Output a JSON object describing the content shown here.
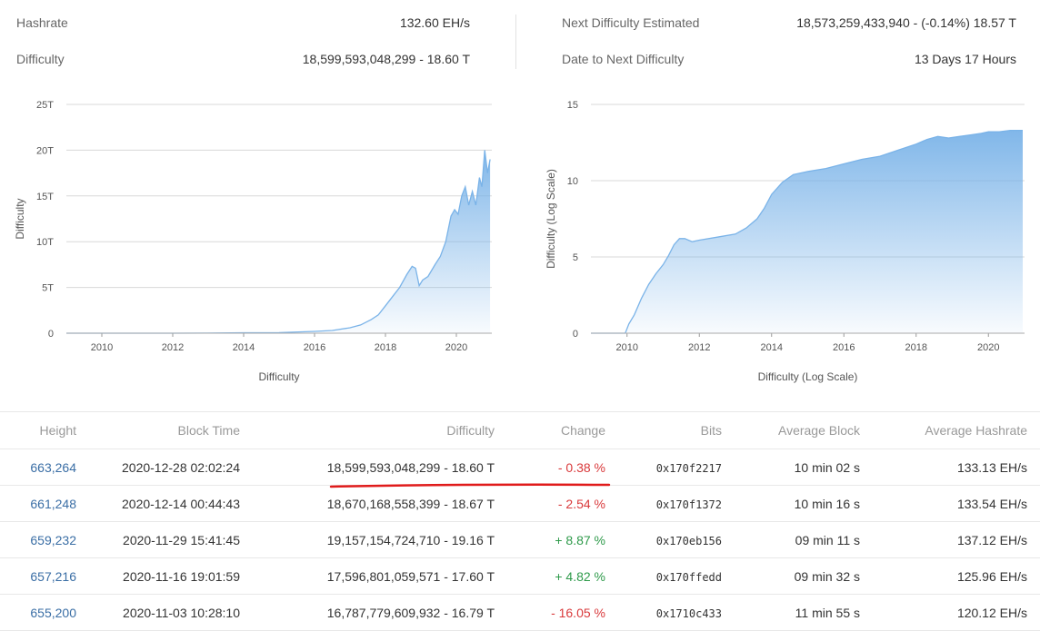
{
  "stats": {
    "hashrate_label": "Hashrate",
    "hashrate_value": "132.60 EH/s",
    "difficulty_label": "Difficulty",
    "difficulty_value": "18,599,593,048,299 - 18.60 T",
    "next_label": "Next Difficulty Estimated",
    "next_value": "18,573,259,433,940 - (-0.14%) 18.57 T",
    "date_label": "Date to Next Difficulty",
    "date_value": "13 Days 17 Hours"
  },
  "chart_data": [
    {
      "type": "area",
      "title": "Difficulty",
      "ylabel": "Difficulty",
      "yticks": [
        "0",
        "5T",
        "10T",
        "15T",
        "20T",
        "25T"
      ],
      "ylim": [
        0,
        25
      ],
      "xticks": [
        "2010",
        "2012",
        "2014",
        "2016",
        "2018",
        "2020"
      ],
      "xlim": [
        2009,
        2021.0
      ],
      "color": "#7ab3e8",
      "x": [
        2009.0,
        2010.0,
        2011.0,
        2012.0,
        2013.0,
        2014.0,
        2015.0,
        2016.0,
        2016.5,
        2017.0,
        2017.3,
        2017.6,
        2017.8,
        2018.0,
        2018.2,
        2018.4,
        2018.6,
        2018.75,
        2018.85,
        2018.95,
        2019.05,
        2019.2,
        2019.4,
        2019.55,
        2019.7,
        2019.85,
        2019.95,
        2020.05,
        2020.15,
        2020.25,
        2020.35,
        2020.45,
        2020.55,
        2020.65,
        2020.72,
        2020.8,
        2020.88,
        2020.95
      ],
      "y": [
        0.0,
        0.0,
        0.0,
        0.0,
        0.01,
        0.05,
        0.06,
        0.2,
        0.3,
        0.6,
        0.9,
        1.5,
        2.0,
        3.0,
        4.0,
        5.0,
        6.4,
        7.3,
        7.1,
        5.2,
        5.8,
        6.2,
        7.5,
        8.4,
        10.0,
        12.8,
        13.5,
        13.0,
        15.0,
        16.0,
        14.0,
        15.5,
        14.0,
        17.0,
        16.0,
        20.0,
        17.5,
        19.0
      ]
    },
    {
      "type": "area",
      "title": "Difficulty (Log Scale)",
      "ylabel": "Difficulty (Log Scale)",
      "yticks": [
        "0",
        "5",
        "10",
        "15"
      ],
      "ylim": [
        0,
        15
      ],
      "xticks": [
        "2010",
        "2012",
        "2014",
        "2016",
        "2018",
        "2020"
      ],
      "xlim": [
        2009,
        2021.0
      ],
      "color": "#7ab3e8",
      "x": [
        2009.0,
        2009.95,
        2010.05,
        2010.2,
        2010.4,
        2010.6,
        2010.8,
        2011.0,
        2011.15,
        2011.3,
        2011.45,
        2011.6,
        2011.8,
        2012.0,
        2012.5,
        2013.0,
        2013.3,
        2013.6,
        2013.8,
        2014.0,
        2014.3,
        2014.6,
        2015.0,
        2015.5,
        2016.0,
        2016.5,
        2017.0,
        2017.5,
        2018.0,
        2018.3,
        2018.6,
        2018.9,
        2019.2,
        2019.5,
        2019.8,
        2020.0,
        2020.3,
        2020.6,
        2020.95
      ],
      "y": [
        0.0,
        0.0,
        0.6,
        1.2,
        2.3,
        3.2,
        3.9,
        4.5,
        5.1,
        5.8,
        6.2,
        6.2,
        6.0,
        6.1,
        6.3,
        6.5,
        6.9,
        7.5,
        8.2,
        9.1,
        9.9,
        10.4,
        10.6,
        10.8,
        11.1,
        11.4,
        11.6,
        12.0,
        12.4,
        12.7,
        12.9,
        12.8,
        12.9,
        13.0,
        13.1,
        13.2,
        13.2,
        13.3,
        13.3
      ]
    }
  ],
  "chart_axis_titles": {
    "left": "Difficulty",
    "right": "Difficulty (Log Scale)"
  },
  "table": {
    "headers": {
      "height": "Height",
      "time": "Block Time",
      "difficulty": "Difficulty",
      "change": "Change",
      "bits": "Bits",
      "avg_block": "Average Block",
      "avg_hash": "Average Hashrate"
    },
    "rows": [
      {
        "height": "663,264",
        "time": "2020-12-28 02:02:24",
        "difficulty": "18,599,593,048,299 - 18.60 T",
        "change": "- 0.38 %",
        "dir": "neg",
        "bits": "0x170f2217",
        "avg_block": "10 min 02 s",
        "avg_hash": "133.13 EH/s"
      },
      {
        "height": "661,248",
        "time": "2020-12-14 00:44:43",
        "difficulty": "18,670,168,558,399 - 18.67 T",
        "change": "- 2.54 %",
        "dir": "neg",
        "bits": "0x170f1372",
        "avg_block": "10 min 16 s",
        "avg_hash": "133.54 EH/s"
      },
      {
        "height": "659,232",
        "time": "2020-11-29 15:41:45",
        "difficulty": "19,157,154,724,710 - 19.16 T",
        "change": "+ 8.87 %",
        "dir": "pos",
        "bits": "0x170eb156",
        "avg_block": "09 min 11 s",
        "avg_hash": "137.12 EH/s"
      },
      {
        "height": "657,216",
        "time": "2020-11-16 19:01:59",
        "difficulty": "17,596,801,059,571 - 17.60 T",
        "change": "+ 4.82 %",
        "dir": "pos",
        "bits": "0x170ffedd",
        "avg_block": "09 min 32 s",
        "avg_hash": "125.96 EH/s"
      },
      {
        "height": "655,200",
        "time": "2020-11-03 10:28:10",
        "difficulty": "16,787,779,609,932 - 16.79 T",
        "change": "- 16.05 %",
        "dir": "neg",
        "bits": "0x1710c433",
        "avg_block": "11 min 55 s",
        "avg_hash": "120.12 EH/s"
      }
    ]
  }
}
